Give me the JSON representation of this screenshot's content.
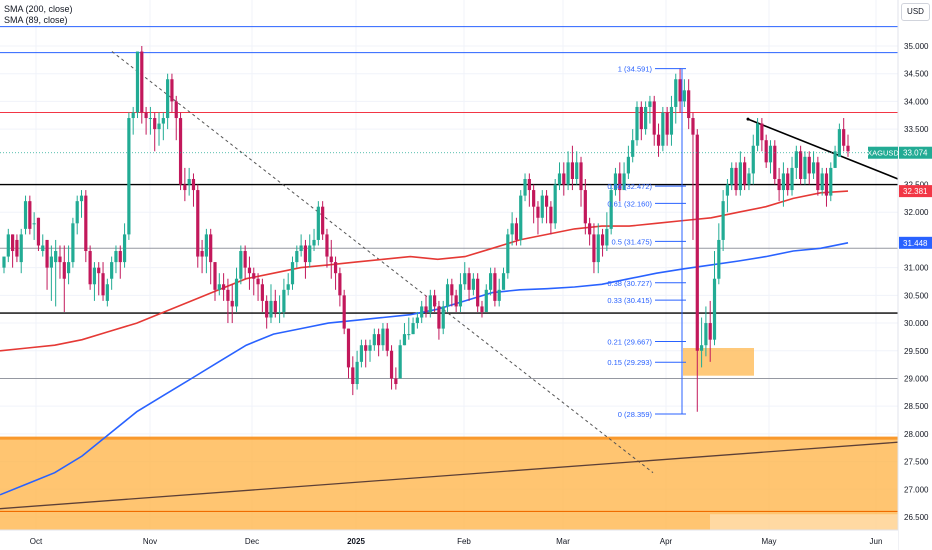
{
  "legend": {
    "sma200": "SMA (200, close)",
    "sma89": "SMA (89, close)"
  },
  "currency_button": "USD",
  "chart_data": {
    "type": "candlestick",
    "symbol": "XAGUSD",
    "price_axis": {
      "ticks": [
        "35.000",
        "34.500",
        "34.000",
        "33.500",
        "32.500",
        "32.000",
        "31.000",
        "30.500",
        "30.000",
        "29.500",
        "29.000",
        "28.500",
        "28.000",
        "27.500",
        "27.000",
        "26.500"
      ],
      "range": [
        26.25,
        35.4
      ]
    },
    "time_axis": {
      "ticks": [
        "Oct",
        "Nov",
        "Dec",
        "2025",
        "Feb",
        "Mar",
        "Apr",
        "May",
        "Jun"
      ]
    },
    "price_labels": [
      {
        "text": "XAGUSD",
        "value": "33.074",
        "color": "#22ab94"
      },
      {
        "text": "",
        "value": "32.381",
        "color": "#f23645"
      },
      {
        "text": "",
        "value": "31.448",
        "color": "#2962ff"
      }
    ],
    "fibonacci": {
      "levels": [
        {
          "ratio": "1",
          "price": "34.591",
          "label": "1 (34.591)"
        },
        {
          "ratio": "0.66",
          "price": "32.472",
          "label": "0.66 (32.472)"
        },
        {
          "ratio": "0.61",
          "price": "32.160",
          "label": "0.61 (32.160)"
        },
        {
          "ratio": "0.5",
          "price": "31.475",
          "label": "0.5 (31.475)"
        },
        {
          "ratio": "0.38",
          "price": "30.727",
          "label": "0.38 (30.727)"
        },
        {
          "ratio": "0.33",
          "price": "30.415",
          "label": "0.33 (30.415)"
        },
        {
          "ratio": "0.21",
          "price": "29.667",
          "label": "0.21 (29.667)"
        },
        {
          "ratio": "0.15",
          "price": "29.293",
          "label": "0.15 (29.293)"
        },
        {
          "ratio": "0",
          "price": "28.359",
          "label": "0 (28.359)"
        }
      ]
    },
    "horizontal_levels": [
      {
        "price": 35.35,
        "color": "#2962ff"
      },
      {
        "price": 34.88,
        "color": "#2962ff"
      },
      {
        "price": 33.8,
        "color": "#f23645"
      },
      {
        "price": 32.5,
        "color": "#000000"
      },
      {
        "price": 31.35,
        "color": "#9598a1"
      },
      {
        "price": 30.18,
        "color": "#000000"
      },
      {
        "price": 29.0,
        "color": "#9598a1"
      }
    ],
    "zones": [
      {
        "from": 29.05,
        "to": 29.55,
        "color": "#ffb74d"
      },
      {
        "from": 26.25,
        "to": 27.95,
        "color": "#ffb74d"
      }
    ],
    "colors": {
      "up": "#22ab94",
      "down": "#c2185b",
      "sma200": "#e53935",
      "sma89": "#2962ff",
      "background": "#ffffff",
      "grid": "#f0f3fa"
    },
    "candles": [
      [
        31.2,
        31.0,
        31.1,
        30.9
      ],
      [
        31.6,
        31.2,
        31.7,
        31.1
      ],
      [
        31.3,
        31.6,
        31.6,
        31.0
      ],
      [
        31.2,
        31.5,
        31.6,
        31.1
      ],
      [
        31.6,
        31.1,
        31.7,
        30.9
      ],
      [
        32.2,
        31.7,
        32.3,
        31.6
      ],
      [
        31.7,
        32.2,
        32.3,
        31.6
      ],
      [
        31.8,
        31.8,
        32.0,
        31.5
      ],
      [
        31.4,
        31.9,
        31.9,
        31.3
      ],
      [
        31.4,
        31.3,
        31.6,
        31.2
      ],
      [
        31.0,
        31.5,
        31.5,
        30.6
      ],
      [
        31.2,
        31.0,
        31.4,
        30.4
      ],
      [
        31.3,
        31.1,
        31.5,
        30.3
      ],
      [
        31.1,
        31.2,
        31.4,
        30.8
      ],
      [
        30.8,
        31.1,
        31.4,
        30.2
      ],
      [
        31.1,
        30.9,
        31.4,
        30.7
      ],
      [
        31.8,
        31.1,
        31.9,
        31.0
      ],
      [
        32.2,
        31.8,
        32.3,
        31.6
      ],
      [
        32.3,
        32.2,
        32.4,
        31.9
      ],
      [
        31.3,
        32.3,
        32.4,
        31.1
      ],
      [
        30.7,
        31.3,
        31.4,
        30.6
      ],
      [
        31.0,
        30.7,
        31.1,
        30.4
      ],
      [
        30.9,
        31.0,
        31.1,
        30.5
      ],
      [
        30.5,
        30.9,
        31.1,
        30.4
      ],
      [
        30.7,
        30.4,
        30.8,
        30.3
      ],
      [
        31.1,
        30.8,
        31.2,
        30.6
      ],
      [
        31.3,
        31.1,
        31.4,
        30.9
      ],
      [
        31.1,
        31.3,
        31.4,
        30.8
      ],
      [
        31.6,
        31.1,
        31.8,
        31.0
      ],
      [
        33.7,
        31.6,
        33.8,
        31.5
      ],
      [
        33.8,
        33.7,
        33.9,
        33.4
      ],
      [
        34.9,
        33.8,
        34.9,
        33.7
      ],
      [
        33.8,
        34.9,
        35.0,
        33.6
      ],
      [
        33.7,
        33.8,
        33.9,
        33.4
      ],
      [
        33.7,
        33.7,
        33.9,
        33.4
      ],
      [
        33.5,
        33.7,
        33.8,
        33.1
      ],
      [
        33.6,
        33.5,
        33.8,
        33.2
      ],
      [
        33.7,
        33.6,
        33.8,
        33.3
      ],
      [
        34.4,
        33.7,
        34.5,
        33.5
      ],
      [
        34.0,
        34.4,
        34.5,
        33.8
      ],
      [
        33.7,
        34.0,
        34.1,
        33.3
      ],
      [
        32.5,
        33.7,
        33.8,
        32.4
      ],
      [
        32.4,
        32.5,
        32.8,
        32.2
      ],
      [
        32.6,
        32.5,
        32.8,
        32.3
      ],
      [
        32.4,
        32.6,
        32.7,
        32.1
      ],
      [
        31.2,
        32.4,
        32.5,
        31.0
      ],
      [
        31.2,
        31.3,
        31.5,
        30.9
      ],
      [
        31.6,
        31.2,
        31.7,
        30.9
      ],
      [
        31.1,
        31.6,
        31.7,
        30.7
      ],
      [
        30.6,
        31.1,
        31.1,
        30.4
      ],
      [
        30.7,
        30.6,
        30.9,
        30.5
      ],
      [
        30.6,
        30.7,
        30.9,
        30.4
      ],
      [
        30.4,
        30.6,
        30.8,
        30.0
      ],
      [
        30.3,
        30.4,
        30.7,
        30.0
      ],
      [
        30.8,
        30.3,
        31.0,
        30.2
      ],
      [
        31.3,
        30.8,
        31.4,
        30.7
      ],
      [
        31.0,
        31.3,
        31.4,
        30.8
      ],
      [
        30.9,
        31.0,
        31.2,
        30.6
      ],
      [
        30.8,
        30.9,
        31.0,
        30.5
      ],
      [
        30.7,
        30.8,
        30.9,
        30.4
      ],
      [
        30.4,
        30.7,
        30.8,
        30.2
      ],
      [
        30.1,
        30.4,
        30.5,
        29.9
      ],
      [
        30.4,
        30.1,
        30.7,
        30.0
      ],
      [
        30.2,
        30.4,
        30.6,
        30.1
      ],
      [
        30.2,
        30.2,
        30.5,
        30.0
      ],
      [
        30.6,
        30.2,
        30.8,
        30.1
      ],
      [
        30.7,
        30.6,
        30.9,
        30.5
      ],
      [
        31.1,
        30.7,
        31.2,
        30.6
      ],
      [
        31.3,
        31.1,
        31.4,
        31.0
      ],
      [
        31.4,
        31.3,
        31.6,
        31.2
      ],
      [
        31.1,
        31.4,
        31.5,
        30.8
      ],
      [
        31.4,
        31.1,
        31.6,
        31.0
      ],
      [
        31.5,
        31.4,
        31.7,
        31.3
      ],
      [
        32.1,
        31.5,
        32.2,
        31.4
      ],
      [
        31.6,
        32.1,
        32.2,
        31.5
      ],
      [
        31.2,
        31.6,
        31.7,
        31.0
      ],
      [
        31.1,
        31.2,
        31.5,
        30.8
      ],
      [
        30.9,
        31.1,
        31.2,
        30.6
      ],
      [
        30.5,
        30.9,
        31.0,
        30.3
      ],
      [
        29.9,
        30.5,
        30.6,
        29.8
      ],
      [
        29.2,
        29.9,
        29.9,
        29.0
      ],
      [
        28.9,
        29.2,
        29.4,
        28.7
      ],
      [
        29.3,
        28.9,
        29.5,
        28.8
      ],
      [
        29.6,
        29.3,
        29.7,
        29.2
      ],
      [
        29.5,
        29.6,
        29.7,
        29.2
      ],
      [
        29.6,
        29.5,
        29.7,
        29.3
      ],
      [
        29.8,
        29.6,
        29.9,
        29.5
      ],
      [
        29.6,
        29.8,
        29.9,
        29.4
      ],
      [
        29.9,
        29.6,
        30.0,
        29.5
      ],
      [
        29.5,
        29.9,
        30.0,
        29.4
      ],
      [
        29.0,
        29.5,
        29.6,
        28.8
      ],
      [
        28.9,
        29.0,
        29.2,
        28.8
      ],
      [
        29.6,
        29.0,
        29.7,
        29.0
      ],
      [
        29.8,
        29.6,
        30.0,
        29.6
      ],
      [
        29.8,
        29.8,
        30.1,
        29.7
      ],
      [
        30.0,
        29.8,
        30.1,
        29.8
      ],
      [
        30.1,
        30.0,
        30.2,
        29.9
      ],
      [
        30.3,
        30.1,
        30.4,
        30.0
      ],
      [
        30.2,
        30.3,
        30.5,
        30.1
      ],
      [
        30.5,
        30.2,
        30.6,
        30.1
      ],
      [
        30.3,
        30.5,
        30.6,
        30.2
      ],
      [
        29.9,
        30.3,
        30.4,
        29.7
      ],
      [
        30.3,
        29.9,
        30.4,
        29.8
      ],
      [
        30.7,
        30.3,
        30.8,
        30.2
      ],
      [
        30.5,
        30.7,
        30.8,
        30.3
      ],
      [
        30.3,
        30.5,
        30.6,
        30.2
      ],
      [
        30.7,
        30.3,
        30.9,
        30.2
      ],
      [
        30.9,
        30.7,
        31.1,
        30.6
      ],
      [
        30.6,
        30.9,
        31.0,
        30.4
      ],
      [
        30.8,
        30.6,
        30.9,
        30.5
      ],
      [
        30.3,
        30.8,
        30.9,
        30.2
      ],
      [
        30.2,
        30.3,
        30.4,
        30.1
      ],
      [
        30.6,
        30.2,
        30.7,
        30.2
      ],
      [
        30.9,
        30.6,
        31.0,
        30.5
      ],
      [
        30.4,
        30.9,
        31.0,
        30.3
      ],
      [
        30.6,
        30.4,
        30.8,
        30.3
      ],
      [
        30.9,
        30.6,
        31.0,
        30.8
      ],
      [
        31.6,
        30.9,
        31.7,
        30.8
      ],
      [
        31.8,
        31.6,
        32.0,
        31.4
      ],
      [
        31.5,
        31.8,
        31.9,
        31.4
      ],
      [
        32.3,
        31.5,
        32.4,
        31.4
      ],
      [
        32.6,
        32.3,
        32.7,
        32.2
      ],
      [
        32.4,
        32.6,
        32.7,
        32.1
      ],
      [
        32.1,
        32.4,
        32.5,
        31.8
      ],
      [
        31.9,
        32.1,
        32.2,
        31.6
      ],
      [
        32.3,
        31.9,
        32.4,
        31.8
      ],
      [
        32.1,
        32.3,
        32.4,
        31.8
      ],
      [
        31.8,
        32.1,
        32.2,
        31.6
      ],
      [
        32.5,
        31.8,
        32.6,
        31.7
      ],
      [
        32.7,
        32.5,
        32.9,
        32.4
      ],
      [
        32.5,
        32.7,
        32.9,
        32.3
      ],
      [
        32.9,
        32.5,
        33.1,
        32.4
      ],
      [
        32.6,
        32.9,
        33.2,
        32.4
      ],
      [
        32.9,
        32.6,
        33.1,
        32.5
      ],
      [
        32.4,
        32.9,
        33.0,
        32.1
      ],
      [
        31.8,
        32.4,
        32.6,
        31.6
      ],
      [
        31.6,
        31.8,
        31.9,
        31.4
      ],
      [
        31.1,
        31.6,
        31.8,
        30.9
      ],
      [
        31.6,
        31.1,
        31.8,
        30.9
      ],
      [
        31.4,
        31.6,
        31.7,
        31.2
      ],
      [
        31.7,
        31.4,
        32.0,
        31.3
      ],
      [
        32.4,
        31.7,
        32.5,
        31.6
      ],
      [
        32.7,
        32.4,
        32.8,
        32.3
      ],
      [
        32.4,
        32.7,
        32.9,
        32.2
      ],
      [
        32.7,
        32.4,
        32.9,
        32.5
      ],
      [
        33.0,
        32.7,
        33.2,
        32.6
      ],
      [
        33.3,
        33.0,
        33.5,
        32.9
      ],
      [
        33.9,
        33.3,
        34.0,
        33.2
      ],
      [
        33.5,
        33.9,
        34.0,
        33.3
      ],
      [
        33.9,
        33.5,
        34.0,
        33.4
      ],
      [
        34.0,
        33.9,
        34.1,
        33.6
      ],
      [
        33.4,
        34.0,
        34.1,
        33.2
      ],
      [
        33.2,
        33.4,
        33.6,
        33.0
      ],
      [
        33.8,
        33.2,
        33.9,
        33.1
      ],
      [
        33.4,
        33.8,
        33.9,
        33.2
      ],
      [
        33.9,
        33.4,
        34.1,
        33.2
      ],
      [
        34.4,
        33.9,
        34.5,
        33.6
      ],
      [
        34.0,
        34.4,
        34.6,
        33.8
      ],
      [
        34.2,
        34.0,
        34.4,
        33.9
      ],
      [
        33.7,
        34.2,
        34.4,
        33.5
      ],
      [
        33.4,
        33.7,
        33.8,
        31.5
      ],
      [
        29.5,
        33.4,
        33.5,
        28.4
      ],
      [
        29.6,
        29.5,
        30.1,
        29.2
      ],
      [
        30.0,
        29.6,
        30.3,
        29.4
      ],
      [
        29.7,
        30.0,
        30.4,
        29.3
      ],
      [
        30.8,
        29.7,
        31.3,
        29.6
      ],
      [
        31.5,
        30.8,
        31.8,
        30.7
      ],
      [
        32.2,
        31.5,
        32.4,
        31.3
      ],
      [
        32.5,
        32.3,
        32.6,
        32.0
      ],
      [
        32.8,
        32.5,
        32.9,
        32.4
      ],
      [
        32.4,
        32.8,
        32.9,
        32.3
      ],
      [
        32.9,
        32.4,
        33.1,
        32.3
      ],
      [
        32.5,
        32.9,
        33.0,
        32.4
      ],
      [
        32.7,
        32.5,
        32.8,
        32.4
      ],
      [
        33.2,
        32.7,
        33.4,
        32.5
      ],
      [
        33.6,
        33.2,
        33.7,
        33.1
      ],
      [
        33.3,
        33.6,
        33.7,
        33.1
      ],
      [
        32.9,
        33.3,
        33.4,
        32.8
      ],
      [
        33.2,
        32.9,
        33.3,
        32.7
      ],
      [
        32.6,
        33.2,
        33.3,
        32.5
      ],
      [
        32.4,
        32.6,
        32.8,
        32.2
      ],
      [
        32.7,
        32.4,
        32.9,
        32.1
      ],
      [
        32.4,
        32.7,
        32.8,
        32.3
      ],
      [
        32.8,
        32.4,
        33.0,
        32.3
      ],
      [
        33.1,
        32.8,
        33.2,
        32.6
      ],
      [
        32.6,
        33.1,
        33.2,
        32.5
      ],
      [
        33.0,
        32.6,
        33.1,
        32.5
      ],
      [
        32.7,
        33.0,
        33.1,
        32.5
      ],
      [
        32.9,
        32.7,
        33.1,
        32.6
      ],
      [
        32.4,
        32.9,
        33.0,
        32.3
      ],
      [
        32.7,
        32.4,
        32.8,
        32.3
      ],
      [
        32.3,
        32.7,
        32.8,
        32.1
      ],
      [
        32.8,
        32.3,
        32.9,
        32.2
      ],
      [
        33.1,
        32.8,
        33.2,
        32.8
      ],
      [
        33.5,
        33.0,
        33.6,
        33.0
      ],
      [
        33.2,
        33.5,
        33.7,
        33.1
      ],
      [
        33.1,
        33.2,
        33.4,
        33.0
      ]
    ],
    "sma200": [
      29.5,
      29.55,
      29.6,
      29.7,
      29.85,
      30.0,
      30.2,
      30.4,
      30.6,
      30.8,
      30.9,
      31.0,
      31.05,
      31.1,
      31.15,
      31.2,
      31.15,
      31.2,
      31.35,
      31.5,
      31.6,
      31.7,
      31.75,
      31.75,
      31.8,
      31.85,
      31.9,
      32.0,
      32.1,
      32.25,
      32.35,
      32.381
    ],
    "sma89": [
      26.9,
      27.1,
      27.3,
      27.6,
      28.0,
      28.4,
      28.7,
      29.0,
      29.3,
      29.6,
      29.8,
      29.9,
      30.0,
      30.05,
      30.1,
      30.15,
      30.25,
      30.4,
      30.55,
      30.6,
      30.62,
      30.65,
      30.7,
      30.8,
      30.9,
      30.98,
      31.05,
      31.12,
      31.2,
      31.3,
      31.35,
      31.448
    ]
  }
}
